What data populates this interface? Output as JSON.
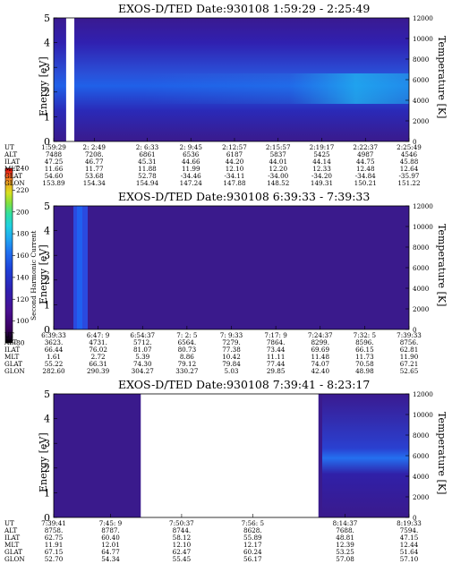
{
  "colorbar": {
    "label": "Second Harmonic Current",
    "ticks": [
      "80",
      "100",
      "120",
      "140",
      "160",
      "180",
      "200",
      "220",
      "240"
    ],
    "range": [
      80,
      240
    ],
    "colors": [
      "#000000",
      "#3a0060",
      "#4a1090",
      "#3020b0",
      "#1e40d8",
      "#2070f0",
      "#20a8f0",
      "#20d0e0",
      "#30e0a0",
      "#80e040",
      "#d8e020",
      "#f0a020",
      "#f04020",
      "#e00000"
    ]
  },
  "panels": [
    {
      "title": "EXOS-D/TED   Date:930108  1:59:29 - 2:25:49",
      "ylabel_left": "Energy [eV]",
      "ylabel_right": "Temperature [K]",
      "yticks_left": [
        "0",
        "1",
        "2",
        "3",
        "4",
        "5"
      ],
      "yticks_right": [
        "0",
        "2000",
        "4000",
        "6000",
        "8000",
        "10000",
        "12000"
      ],
      "gap": [
        0.035,
        0.058
      ],
      "eph_labels": [
        "UT",
        "ALT",
        "ILAT",
        "MLT",
        "GLAT",
        "GLON"
      ],
      "eph_cols": [
        {
          "x": 0.0,
          "vals": [
            "1:59:29",
            "7488",
            "47.25",
            "11.66",
            "54.60",
            "153.89"
          ]
        },
        {
          "x": 0.13,
          "vals": [
            "2: 2:49",
            "7208.",
            "46.77",
            "11.77",
            "53.68",
            "154.34"
          ]
        },
        {
          "x": 0.3,
          "vals": [
            "2: 6:33",
            "6861",
            "45.31",
            "11.88",
            "52.78",
            "154.94"
          ]
        },
        {
          "x": 0.44,
          "vals": [
            "2: 9:45",
            "6536",
            "44.66",
            "11.99",
            "-34.46",
            "147.24"
          ]
        },
        {
          "x": 0.58,
          "vals": [
            "2:12:57",
            "6187",
            "44.20",
            "12.10",
            "-34.11",
            "147.88"
          ]
        },
        {
          "x": 0.72,
          "vals": [
            "2:15:57",
            "5837",
            "44.01",
            "12.20",
            "-34.00",
            "148.52"
          ]
        },
        {
          "x": 0.86,
          "vals": [
            "2:19:17",
            "5425",
            "44.14",
            "12.33",
            "-34.20",
            "149.31"
          ]
        },
        {
          "x": 1.0,
          "vals": [
            "2:22:37",
            "4987",
            "44.75",
            "12.48",
            "-34.84",
            "150.21"
          ]
        },
        {
          "x": 1.14,
          "vals": [
            "2:25:49",
            "4546",
            "45.88",
            "12.64",
            "-35.97",
            "151.22"
          ]
        }
      ]
    },
    {
      "title": "EXOS-D/TED   Date:930108  6:39:33 - 7:39:33",
      "ylabel_left": "Energy [eV]",
      "ylabel_right": "Temperature [K]",
      "yticks_left": [
        "0",
        "1",
        "2",
        "3",
        "4",
        "5"
      ],
      "yticks_right": [
        "0",
        "2000",
        "4000",
        "6000",
        "8000",
        "10000",
        "12000"
      ],
      "eph_labels": [
        "UT",
        "ALT",
        "ILAT",
        "MLT",
        "GLAT",
        "GLON"
      ],
      "eph_cols": [
        {
          "x": 0.0,
          "vals": [
            "6:39:33",
            "3623.",
            "66.44",
            "1.61",
            "55.22",
            "282.60"
          ]
        },
        {
          "x": 0.125,
          "vals": [
            "6:47: 9",
            "4731.",
            "76.02",
            "2.72",
            "66.31",
            "290.39"
          ]
        },
        {
          "x": 0.25,
          "vals": [
            "6:54:37",
            "5712.",
            "81.07",
            "5.39",
            "74.30",
            "304.27"
          ]
        },
        {
          "x": 0.375,
          "vals": [
            "7: 2: 5",
            "6564.",
            "80.73",
            "8.86",
            "79.12",
            "330.27"
          ]
        },
        {
          "x": 0.5,
          "vals": [
            "7: 9:33",
            "7279.",
            "77.38",
            "10.42",
            "79.84",
            "5.03"
          ]
        },
        {
          "x": 0.625,
          "vals": [
            "7:17: 9",
            "7864.",
            "73.44",
            "11.11",
            "77.44",
            "29.85"
          ]
        },
        {
          "x": 0.75,
          "vals": [
            "7:24:37",
            "8299.",
            "69.69",
            "11.48",
            "74.07",
            "42.40"
          ]
        },
        {
          "x": 0.875,
          "vals": [
            "7:32: 5",
            "8596.",
            "66.15",
            "11.73",
            "70.58",
            "48.98"
          ]
        },
        {
          "x": 1.0,
          "vals": [
            "7:39:33",
            "8756.",
            "62.81",
            "11.90",
            "67.21",
            "52.65"
          ]
        }
      ]
    },
    {
      "title": "EXOS-D/TED   Date:930108  7:39:41 - 8:23:17",
      "ylabel_left": "Energy [eV]",
      "ylabel_right": "Temperature [K]",
      "yticks_left": [
        "0",
        "1",
        "2",
        "3",
        "4",
        "5"
      ],
      "yticks_right": [
        "0",
        "2000",
        "4000",
        "6000",
        "8000",
        "10000",
        "12000"
      ],
      "gap": [
        0.245,
        0.745
      ],
      "eph_labels": [
        "UT",
        "ALT",
        "ILAT",
        "MLT",
        "GLAT",
        "GLON"
      ],
      "eph_cols": [
        {
          "x": 0.0,
          "vals": [
            "7:39:41",
            "8758.",
            "62.75",
            "11.91",
            "67.15",
            "52.70"
          ]
        },
        {
          "x": 0.16,
          "vals": [
            "7:45: 9",
            "8787.",
            "60.40",
            "12.01",
            "64.77",
            "54.34"
          ]
        },
        {
          "x": 0.36,
          "vals": [
            "7:50:37",
            "8744.",
            "58.12",
            "12.10",
            "62.47",
            "55.45"
          ]
        },
        {
          "x": 0.56,
          "vals": [
            "7:56: 5",
            "8628.",
            "55.89",
            "12.17",
            "60.24",
            "56.17"
          ]
        },
        {
          "x": 0.82,
          "vals": [
            "8:14:37",
            "7688.",
            "48.81",
            "12.39",
            "53.25",
            "57.08"
          ]
        },
        {
          "x": 1.0,
          "vals": [
            "8:19:33",
            "7594.",
            "47.15",
            "12.44",
            "51.64",
            "57.10"
          ]
        }
      ]
    }
  ]
}
